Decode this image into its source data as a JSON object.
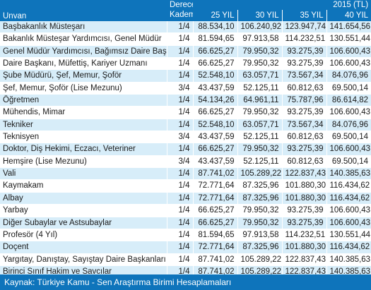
{
  "header": {
    "unvan_label": "Unvan",
    "derece_label_line1": "Derece/",
    "derece_label_line2": "Kademe",
    "year_label": "2015 (TL)",
    "columns": [
      "25 YIL",
      "30 YIL",
      "35 YIL",
      "40 YIL"
    ]
  },
  "rows": [
    {
      "name": "Başbakanlık Müsteşarı",
      "dk": "1/4",
      "v": [
        "88.534,10",
        "106.240,92",
        "123.947,74",
        "141.654,56"
      ]
    },
    {
      "name": "Bakanlık Müsteşar Yardımcısı, Genel Müdür",
      "dk": "1/4",
      "v": [
        "81.594,65",
        "97.913,58",
        "114.232,51",
        "130.551,44"
      ]
    },
    {
      "name": "Genel Müdür Yardımcısı, Bağımsız Daire Başkanı",
      "dk": "1/4",
      "v": [
        "66.625,27",
        "79.950,32",
        "93.275,39",
        "106.600,43"
      ]
    },
    {
      "name": "Daire Başkanı, Müfettiş, Kariyer Uzmanı",
      "dk": "1/4",
      "v": [
        "66.625,27",
        "79.950,32",
        "93.275,39",
        "106.600,43"
      ]
    },
    {
      "name": "Şube Müdürü, Şef, Memur, Şoför",
      "dk": "1/4",
      "v": [
        "52.548,10",
        "63.057,71",
        "73.567,34",
        "84.076,96"
      ]
    },
    {
      "name": "Şef, Memur, Şoför (Lise Mezunu)",
      "dk": "3/4",
      "v": [
        "43.437,59",
        "52.125,11",
        "60.812,63",
        "69.500,14"
      ]
    },
    {
      "name": "Öğretmen",
      "dk": "1/4",
      "v": [
        "54.134,26",
        "64.961,11",
        "75.787,96",
        "86.614,82"
      ]
    },
    {
      "name": "Mühendis, Mimar",
      "dk": "1/4",
      "v": [
        "66.625,27",
        "79.950,32",
        "93.275,39",
        "106.600,43"
      ]
    },
    {
      "name": "Tekniker",
      "dk": "1/4",
      "v": [
        "52.548,10",
        "63.057,71",
        "73.567,34",
        "84.076,96"
      ]
    },
    {
      "name": "Teknisyen",
      "dk": "3/4",
      "v": [
        "43.437,59",
        "52.125,11",
        "60.812,63",
        "69.500,14"
      ]
    },
    {
      "name": "Doktor, Diş Hekimi, Eczacı, Veteriner",
      "dk": "1/4",
      "v": [
        "66.625,27",
        "79.950,32",
        "93.275,39",
        "106.600,43"
      ]
    },
    {
      "name": "Hemşire (Lise Mezunu)",
      "dk": "3/4",
      "v": [
        "43.437,59",
        "52.125,11",
        "60.812,63",
        "69.500,14"
      ]
    },
    {
      "name": "Vali",
      "dk": "1/4",
      "v": [
        "87.741,02",
        "105.289,22",
        "122.837,43",
        "140.385,63"
      ]
    },
    {
      "name": "Kaymakam",
      "dk": "1/4",
      "v": [
        "72.771,64",
        "87.325,96",
        "101.880,30",
        "116.434,62"
      ]
    },
    {
      "name": "Albay",
      "dk": "1/4",
      "v": [
        "72.771,64",
        "87.325,96",
        "101.880,30",
        "116.434,62"
      ]
    },
    {
      "name": "Yarbay",
      "dk": "1/4",
      "v": [
        "66.625,27",
        "79.950,32",
        "93.275,39",
        "106.600,43"
      ]
    },
    {
      "name": "Diğer Subaylar ve Astsubaylar",
      "dk": "1/4",
      "v": [
        "66.625,27",
        "79.950,32",
        "93.275,39",
        "106.600,43"
      ]
    },
    {
      "name": "Profesör (4 Yıl)",
      "dk": "1/4",
      "v": [
        "81.594,65",
        "97.913,58",
        "114.232,51",
        "130.551,44"
      ]
    },
    {
      "name": "Doçent",
      "dk": "1/4",
      "v": [
        "72.771,64",
        "87.325,96",
        "101.880,30",
        "116.434,62"
      ]
    },
    {
      "name": "Yargıtay, Danıştay, Sayıştay Daire Başkanları",
      "dk": "1/4",
      "v": [
        "87.741,02",
        "105.289,22",
        "122.837,43",
        "140.385,63"
      ]
    },
    {
      "name": "Birinci Sınıf Hakim ve Savcılar",
      "dk": "1/4",
      "v": [
        "87.741,02",
        "105.289,22",
        "122.837,43",
        "140.385,63"
      ]
    }
  ],
  "source": "Kaynak: Türkiye Kamu - Sen Araştırma Birimi Hesaplamaları",
  "colors": {
    "header_bg": "#0e74bb",
    "stripe": "#d7edf9",
    "header_text": "#ffffff"
  }
}
